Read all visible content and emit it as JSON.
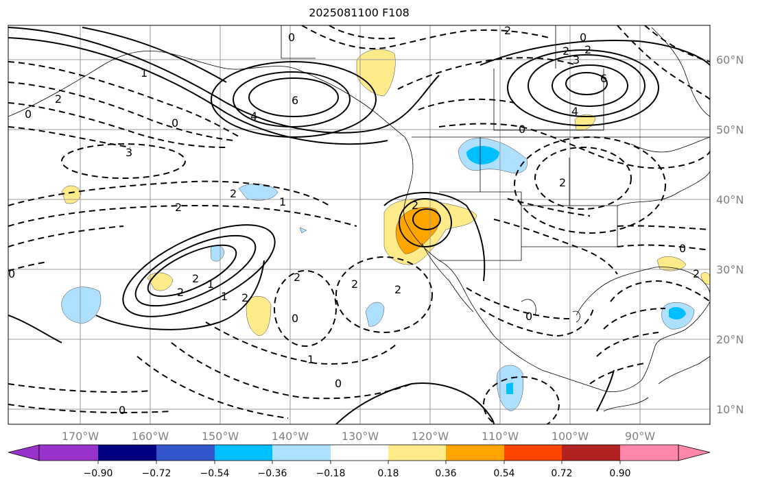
{
  "title": "2025081100 F108",
  "lat_labels": [
    "60°N",
    "50°N",
    "40°N",
    "30°N",
    "20°N",
    "10°N"
  ],
  "lon_labels": [
    "170°W",
    "160°W",
    "150°W",
    "140°W",
    "130°W",
    "120°W",
    "110°W",
    "100°W",
    "90°W"
  ],
  "colorbar": {
    "ticks": [
      "−0.90",
      "−0.72",
      "−0.54",
      "−0.36",
      "−0.18",
      "0.18",
      "0.36",
      "0.54",
      "0.72",
      "0.90"
    ],
    "colors": [
      "#9933cc",
      "#000080",
      "#3355cc",
      "#00bfff",
      "#aee0ff",
      "#ffffff",
      "#ffeb8a",
      "#ffa500",
      "#ff4500",
      "#b22222",
      "#ff88aa"
    ]
  },
  "contour_labels": [
    "0",
    "2",
    "0",
    "1",
    "6",
    "4",
    "0",
    "2",
    "3",
    "2",
    "1",
    "2",
    "2",
    "1",
    "2",
    "1",
    "0",
    "2",
    "2",
    "2",
    "0",
    "2",
    "1",
    "0",
    "0",
    "2",
    "6",
    "3",
    "2",
    "2",
    "0",
    "4",
    "2",
    "0",
    "0",
    "2",
    "0"
  ]
}
